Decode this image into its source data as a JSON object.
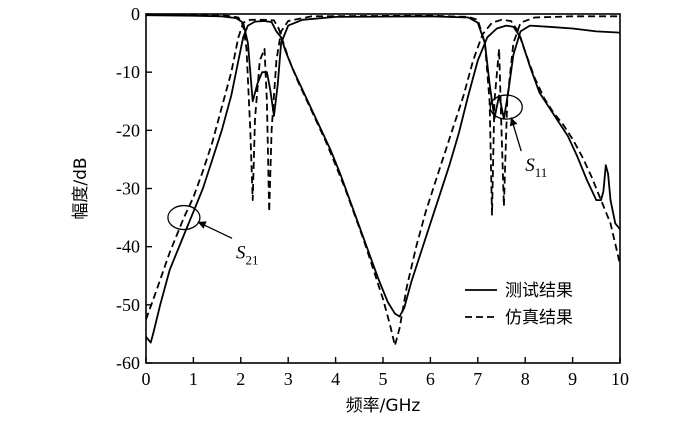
{
  "chart_data": {
    "type": "line",
    "xlabel": "频率/GHz",
    "ylabel": "幅度/dB",
    "xlim": [
      0,
      10
    ],
    "ylim": [
      -60,
      0
    ],
    "x_ticks": [
      0,
      1,
      2,
      3,
      4,
      5,
      6,
      7,
      8,
      9,
      10
    ],
    "x_tick_labels": [
      "0",
      "1",
      "2",
      "3",
      "4",
      "5",
      "6",
      "7",
      "8",
      "9",
      "10"
    ],
    "y_ticks": [
      0,
      -10,
      -20,
      -30,
      -40,
      -50,
      -60
    ],
    "y_tick_labels": [
      "0",
      "-10",
      "-20",
      "-30",
      "-40",
      "-50",
      "-60"
    ],
    "grid": false,
    "legend_position": "bottom-right",
    "legend": [
      {
        "label": "测试结果",
        "style": "solid"
      },
      {
        "label": "仿真结果",
        "style": "dashed"
      }
    ],
    "annotations": [
      {
        "symbol": "S",
        "subscript": "21",
        "ellipse_center": [
          0.8,
          -35
        ],
        "text_pos": [
          1.9,
          -42
        ]
      },
      {
        "symbol": "S",
        "subscript": "11",
        "ellipse_center": [
          7.6,
          -16
        ],
        "text_pos": [
          8.0,
          -27
        ]
      }
    ],
    "series": [
      {
        "style": "solid",
        "points": [
          [
            0,
            -55.5
          ],
          [
            0.1,
            -56.5
          ],
          [
            0.15,
            -55
          ],
          [
            0.3,
            -50
          ],
          [
            0.5,
            -44
          ],
          [
            0.8,
            -38
          ],
          [
            1.0,
            -34
          ],
          [
            1.2,
            -30
          ],
          [
            1.4,
            -25
          ],
          [
            1.6,
            -20
          ],
          [
            1.8,
            -14
          ],
          [
            1.95,
            -8
          ],
          [
            2.05,
            -4
          ],
          [
            2.15,
            -2
          ],
          [
            2.3,
            -1.3
          ],
          [
            2.5,
            -1.2
          ],
          [
            2.65,
            -1.4
          ],
          [
            2.75,
            -3
          ],
          [
            2.85,
            -4
          ],
          [
            2.95,
            -6.5
          ],
          [
            3.1,
            -9.5
          ],
          [
            3.3,
            -13
          ],
          [
            3.5,
            -16.5
          ],
          [
            3.7,
            -20
          ],
          [
            3.9,
            -23.5
          ],
          [
            4.1,
            -27.5
          ],
          [
            4.3,
            -32
          ],
          [
            4.5,
            -36.5
          ],
          [
            4.7,
            -41
          ],
          [
            4.9,
            -45.5
          ],
          [
            5.1,
            -49.5
          ],
          [
            5.25,
            -51.5
          ],
          [
            5.35,
            -52
          ],
          [
            5.45,
            -50.5
          ],
          [
            5.6,
            -46
          ],
          [
            5.8,
            -41
          ],
          [
            6.0,
            -36
          ],
          [
            6.2,
            -31
          ],
          [
            6.4,
            -26
          ],
          [
            6.6,
            -20.5
          ],
          [
            6.8,
            -14
          ],
          [
            7.0,
            -8
          ],
          [
            7.2,
            -4
          ],
          [
            7.4,
            -2.5
          ],
          [
            7.6,
            -2
          ],
          [
            7.75,
            -2.2
          ],
          [
            7.9,
            -4
          ],
          [
            8.1,
            -9
          ],
          [
            8.3,
            -13.5
          ],
          [
            8.5,
            -16
          ],
          [
            8.7,
            -18.5
          ],
          [
            8.9,
            -21
          ],
          [
            9.1,
            -24.5
          ],
          [
            9.3,
            -28.5
          ],
          [
            9.5,
            -32
          ],
          [
            9.6,
            -32
          ],
          [
            9.65,
            -30.5
          ],
          [
            9.7,
            -26
          ],
          [
            9.75,
            -27.5
          ],
          [
            9.8,
            -32
          ],
          [
            9.9,
            -36
          ],
          [
            10.0,
            -37
          ]
        ]
      },
      {
        "style": "solid",
        "points": [
          [
            0,
            -0.2
          ],
          [
            1.0,
            -0.3
          ],
          [
            1.6,
            -0.4
          ],
          [
            1.9,
            -0.7
          ],
          [
            2.05,
            -1.5
          ],
          [
            2.15,
            -5
          ],
          [
            2.25,
            -15
          ],
          [
            2.35,
            -12
          ],
          [
            2.45,
            -10
          ],
          [
            2.55,
            -10
          ],
          [
            2.62,
            -13
          ],
          [
            2.7,
            -17.5
          ],
          [
            2.78,
            -12
          ],
          [
            2.85,
            -5
          ],
          [
            3.0,
            -2
          ],
          [
            3.3,
            -1
          ],
          [
            4.0,
            -0.5
          ],
          [
            6.0,
            -0.4
          ],
          [
            6.8,
            -0.6
          ],
          [
            7.0,
            -1.5
          ],
          [
            7.15,
            -5
          ],
          [
            7.25,
            -12
          ],
          [
            7.35,
            -18
          ],
          [
            7.45,
            -14
          ],
          [
            7.55,
            -18
          ],
          [
            7.65,
            -13
          ],
          [
            7.75,
            -7
          ],
          [
            7.9,
            -3
          ],
          [
            8.1,
            -2
          ],
          [
            8.5,
            -2.2
          ],
          [
            9.0,
            -2.5
          ],
          [
            9.5,
            -3
          ],
          [
            10.0,
            -3.2
          ]
        ]
      },
      {
        "style": "dashed",
        "points": [
          [
            0,
            -52.5
          ],
          [
            0.2,
            -48
          ],
          [
            0.5,
            -41
          ],
          [
            0.8,
            -35
          ],
          [
            1.0,
            -31.5
          ],
          [
            1.2,
            -27
          ],
          [
            1.4,
            -22
          ],
          [
            1.6,
            -16
          ],
          [
            1.8,
            -10
          ],
          [
            1.95,
            -4
          ],
          [
            2.05,
            -1.5
          ],
          [
            2.2,
            -1
          ],
          [
            2.5,
            -1
          ],
          [
            2.7,
            -1.1
          ],
          [
            2.8,
            -2.5
          ],
          [
            2.9,
            -5
          ],
          [
            3.0,
            -7.5
          ],
          [
            3.2,
            -11.5
          ],
          [
            3.4,
            -15
          ],
          [
            3.6,
            -18.5
          ],
          [
            3.8,
            -22
          ],
          [
            4.0,
            -26
          ],
          [
            4.2,
            -30
          ],
          [
            4.4,
            -34.5
          ],
          [
            4.6,
            -39
          ],
          [
            4.8,
            -44
          ],
          [
            5.0,
            -49
          ],
          [
            5.15,
            -53.5
          ],
          [
            5.25,
            -57
          ],
          [
            5.35,
            -54
          ],
          [
            5.5,
            -47
          ],
          [
            5.7,
            -40
          ],
          [
            5.9,
            -34
          ],
          [
            6.1,
            -29
          ],
          [
            6.3,
            -24
          ],
          [
            6.5,
            -19
          ],
          [
            6.7,
            -14
          ],
          [
            6.9,
            -8
          ],
          [
            7.1,
            -3.5
          ],
          [
            7.3,
            -1.5
          ],
          [
            7.5,
            -1
          ],
          [
            7.7,
            -1.2
          ],
          [
            7.85,
            -3
          ],
          [
            8.0,
            -6.5
          ],
          [
            8.2,
            -11
          ],
          [
            8.4,
            -14.5
          ],
          [
            8.6,
            -17
          ],
          [
            8.8,
            -19
          ],
          [
            9.0,
            -21.5
          ],
          [
            9.2,
            -24.5
          ],
          [
            9.4,
            -28
          ],
          [
            9.6,
            -32
          ],
          [
            9.8,
            -36
          ],
          [
            10.0,
            -43
          ]
        ]
      },
      {
        "style": "dashed",
        "points": [
          [
            0,
            -0.1
          ],
          [
            1.0,
            -0.2
          ],
          [
            1.7,
            -0.3
          ],
          [
            1.95,
            -0.6
          ],
          [
            2.05,
            -2
          ],
          [
            2.12,
            -6
          ],
          [
            2.2,
            -20
          ],
          [
            2.25,
            -32
          ],
          [
            2.3,
            -18
          ],
          [
            2.4,
            -8
          ],
          [
            2.5,
            -6
          ],
          [
            2.55,
            -15
          ],
          [
            2.6,
            -34
          ],
          [
            2.65,
            -20
          ],
          [
            2.75,
            -8
          ],
          [
            2.85,
            -3
          ],
          [
            3.0,
            -1.2
          ],
          [
            3.5,
            -0.4
          ],
          [
            6.0,
            -0.3
          ],
          [
            6.8,
            -0.5
          ],
          [
            7.0,
            -1
          ],
          [
            7.15,
            -5
          ],
          [
            7.25,
            -15
          ],
          [
            7.3,
            -34.5
          ],
          [
            7.35,
            -15
          ],
          [
            7.45,
            -6
          ],
          [
            7.5,
            -20
          ],
          [
            7.55,
            -33
          ],
          [
            7.62,
            -15
          ],
          [
            7.75,
            -5
          ],
          [
            7.9,
            -1.5
          ],
          [
            8.2,
            -0.6
          ],
          [
            9.0,
            -0.4
          ],
          [
            10.0,
            -0.4
          ]
        ]
      }
    ]
  }
}
